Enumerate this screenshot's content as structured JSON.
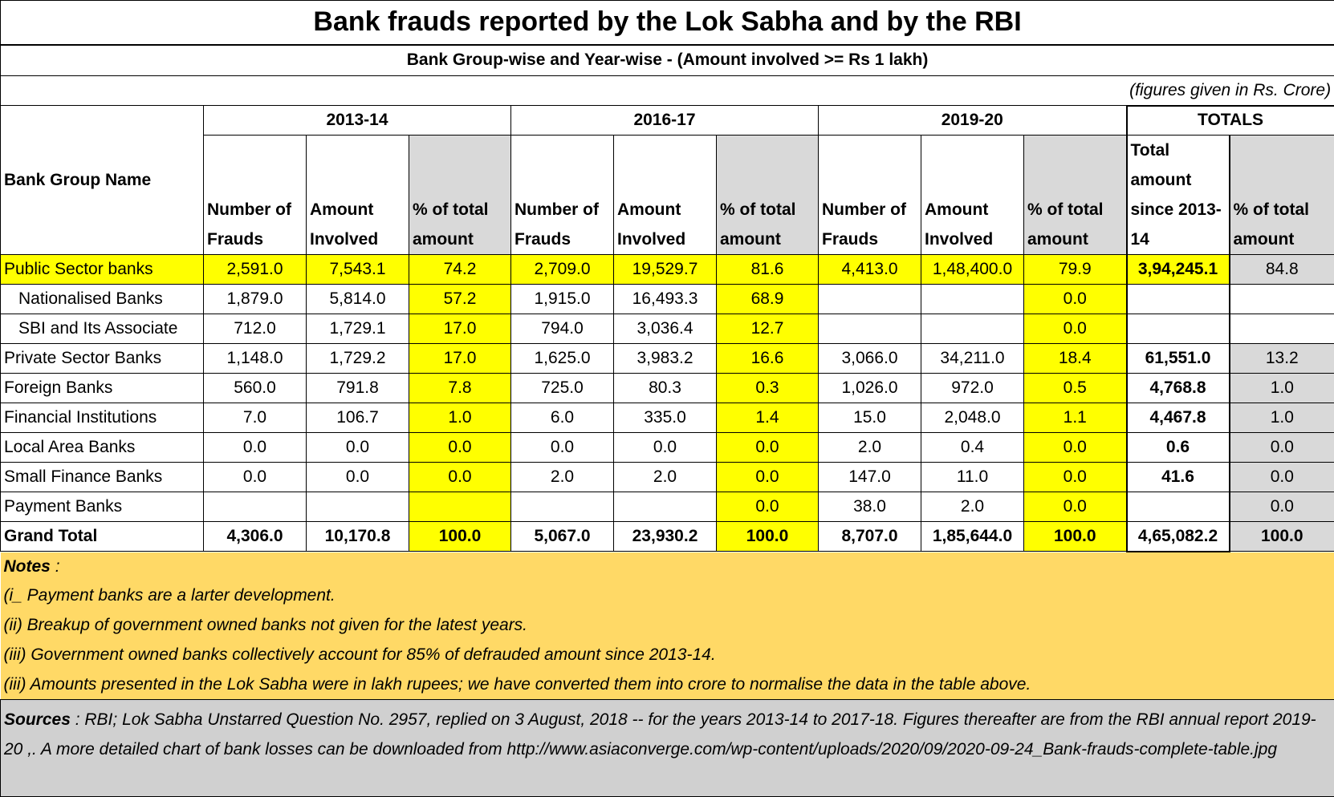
{
  "title": "Bank frauds reported by the Lok Sabha and by the RBI",
  "subtitle": "Bank Group-wise and Year-wise - (Amount involved >= Rs 1 lakh)",
  "unit_note": "(figures given in Rs. Crore)",
  "table": {
    "group_headers": [
      "2013-14",
      "2016-17",
      "2019-20",
      "TOTALS"
    ],
    "column_headers": [
      "Bank Group Name",
      "Number of Frauds",
      "Amount Involved",
      "% of total amount",
      "Number of Frauds",
      "Amount Involved",
      "% of total amount",
      "Number of Frauds",
      "Amount Involved",
      "% of total amount",
      "Total amount since 2013-14",
      "% of total amount"
    ],
    "rows": [
      [
        "Public Sector banks",
        "2,591.0",
        "7,543.1",
        "74.2",
        "2,709.0",
        "19,529.7",
        "81.6",
        "4,413.0",
        "1,48,400.0",
        "79.9",
        "3,94,245.1",
        "84.8"
      ],
      [
        "Nationalised Banks",
        "1,879.0",
        "5,814.0",
        "57.2",
        "1,915.0",
        "16,493.3",
        "68.9",
        null,
        null,
        "0.0",
        null,
        null
      ],
      [
        "SBI and Its Associate",
        "712.0",
        "1,729.1",
        "17.0",
        "794.0",
        "3,036.4",
        "12.7",
        null,
        null,
        "0.0",
        null,
        null
      ],
      [
        "Private Sector Banks",
        "1,148.0",
        "1,729.2",
        "17.0",
        "1,625.0",
        "3,983.2",
        "16.6",
        "3,066.0",
        "34,211.0",
        "18.4",
        "61,551.0",
        "13.2"
      ],
      [
        "Foreign Banks",
        "560.0",
        "791.8",
        "7.8",
        "725.0",
        "80.3",
        "0.3",
        "1,026.0",
        "972.0",
        "0.5",
        "4,768.8",
        "1.0"
      ],
      [
        "Financial Institutions",
        "7.0",
        "106.7",
        "1.0",
        "6.0",
        "335.0",
        "1.4",
        "15.0",
        "2,048.0",
        "1.1",
        "4,467.8",
        "1.0"
      ],
      [
        "Local Area Banks",
        "0.0",
        "0.0",
        "0.0",
        "0.0",
        "0.0",
        "0.0",
        "2.0",
        "0.4",
        "0.0",
        "0.6",
        "0.0"
      ],
      [
        "Small Finance Banks",
        "0.0",
        "0.0",
        "0.0",
        "2.0",
        "2.0",
        "0.0",
        "147.0",
        "11.0",
        "0.0",
        "41.6",
        "0.0"
      ],
      [
        "Payment Banks",
        null,
        null,
        null,
        null,
        null,
        "0.0",
        "38.0",
        "2.0",
        "0.0",
        null,
        "0.0"
      ],
      [
        "Grand Total",
        "4,306.0",
        "10,170.8",
        "100.0",
        "5,067.0",
        "23,930.2",
        "100.0",
        "8,707.0",
        "1,85,644.0",
        "100.0",
        "4,65,082.2",
        "100.0"
      ]
    ]
  },
  "notes": {
    "label": "Notes",
    "items": [
      "(i_ Payment banks are a larter development.",
      "(ii) Breakup of government owned banks not given for the latest years.",
      "(iii) Government owned banks collectively account for 85% of defrauded amount since 2013-14.",
      "(iii) Amounts presented in the Lok Sabha were in lakh rupees; we have converted them into crore to normalise the data in the table above."
    ]
  },
  "sources": {
    "label": "Sources",
    "text": ": RBI; Lok Sabha Unstarred Question No. 2957, replied on 3 August, 2018  -- for the years  2013-14 to 2017-18.  Figures thereafter are from the RBI annual report 2019-20       ,. A more detailed chart of bank losses can be downloaded from  http://www.asiaconverge.com/wp-content/uploads/2020/09/2020-09-24_Bank-frauds-complete-table.jpg"
  }
}
